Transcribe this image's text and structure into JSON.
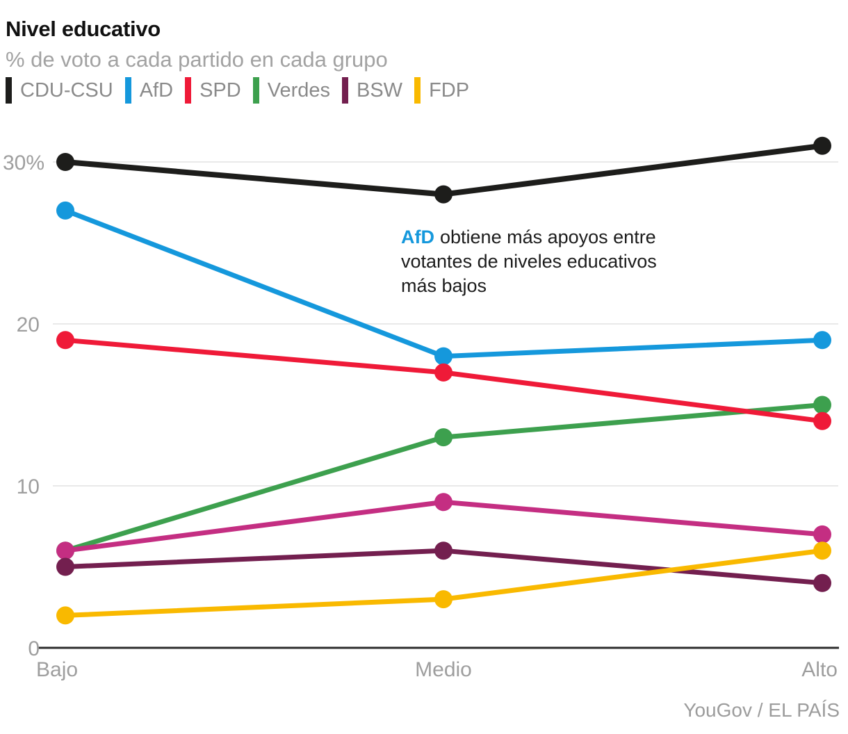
{
  "header": {
    "title": "Nivel educativo",
    "subtitle": "% de voto a cada partido en cada grupo"
  },
  "legend": {
    "items": [
      {
        "label": "CDU-CSU",
        "color": "#1d1d1b"
      },
      {
        "label": "AfD",
        "color": "#1598dc"
      },
      {
        "label": "SPD",
        "color": "#ef1a38"
      },
      {
        "label": "Verdes",
        "color": "#3da04e"
      },
      {
        "label": "BSW",
        "color": "#731f4f"
      },
      {
        "label": "FDP",
        "color": "#f9b900"
      }
    ]
  },
  "annotation": {
    "lead": "AfD",
    "lead_color": "#1598dc",
    "line1_rest": "obtiene más apoyos entre",
    "line2": "votantes de niveles educativos",
    "line3": "más bajos"
  },
  "footer": {
    "credit": "YouGov / EL PAÍS"
  },
  "chart_data": {
    "type": "line",
    "categories": [
      "Bajo",
      "Medio",
      "Alto"
    ],
    "series": [
      {
        "name": "CDU-CSU",
        "color": "#1d1d1b",
        "values": [
          30,
          28,
          31
        ]
      },
      {
        "name": "AfD",
        "color": "#1598dc",
        "values": [
          27,
          18,
          19
        ]
      },
      {
        "name": "Verdes",
        "color": "#3da04e",
        "values": [
          6,
          13,
          15
        ]
      },
      {
        "name": "SPD",
        "color": "#ef1a38",
        "values": [
          19,
          17,
          14
        ]
      },
      {
        "name": "unlabeled-magenta",
        "color": "#c42e82",
        "values": [
          6,
          9,
          7
        ]
      },
      {
        "name": "BSW",
        "color": "#731f4f",
        "values": [
          5,
          6,
          4
        ]
      },
      {
        "name": "FDP",
        "color": "#f9b900",
        "values": [
          2,
          3,
          6
        ]
      }
    ],
    "title": "Nivel educativo",
    "subtitle": "% de voto a cada partido en cada grupo",
    "xlabel": "",
    "ylabel": "",
    "ylim": [
      0,
      32
    ],
    "yticks": [
      {
        "value": 0,
        "label": "0"
      },
      {
        "value": 10,
        "label": "10"
      },
      {
        "value": 20,
        "label": "20"
      },
      {
        "value": 30,
        "label": "30%"
      }
    ],
    "grid": "horizontal",
    "legend_position": "top",
    "annotation": "AfD obtiene más apoyos entre votantes de niveles educativos más bajos",
    "source": "YouGov / EL PAÍS"
  }
}
